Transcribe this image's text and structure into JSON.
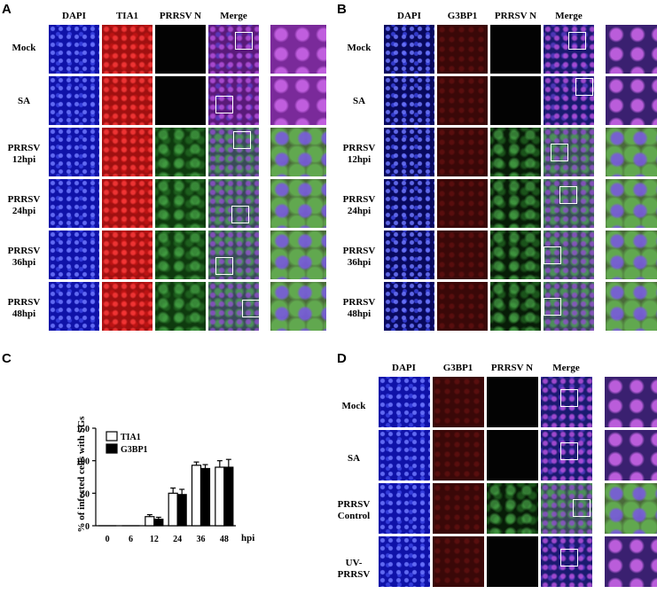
{
  "panels": {
    "A": {
      "label": "A",
      "columns": [
        "DAPI",
        "TIA1",
        "PRRSV N",
        "Merge"
      ],
      "rows": [
        "Mock",
        "SA",
        "PRRSV\n12hpi",
        "PRRSV\n24hpi",
        "PRRSV\n36hpi",
        "PRRSV\n48hpi"
      ]
    },
    "B": {
      "label": "B",
      "columns": [
        "DAPI",
        "G3BP1",
        "PRRSV N",
        "Merge"
      ],
      "rows": [
        "Mock",
        "SA",
        "PRRSV\n12hpi",
        "PRRSV\n24hpi",
        "PRRSV\n36hpi",
        "PRRSV\n48hpi"
      ]
    },
    "C": {
      "label": "C"
    },
    "D": {
      "label": "D",
      "columns": [
        "DAPI",
        "G3BP1",
        "PRRSV N",
        "Merge"
      ],
      "rows": [
        "Mock",
        "SA",
        "PRRSV\nControl",
        "UV-PRRSV"
      ]
    }
  },
  "chart_data": {
    "type": "bar",
    "ylabel": "% of infected cells with SGs",
    "xlabel": "hpi",
    "ylim": [
      0,
      150
    ],
    "yticks": [
      "0",
      "50",
      "100",
      "150"
    ],
    "categories": [
      "0",
      "6",
      "12",
      "24",
      "36",
      "48"
    ],
    "series": [
      {
        "name": "TIA1",
        "values": [
          0,
          0,
          14,
          50,
          93,
          90
        ],
        "errors": [
          0,
          0,
          3,
          8,
          5,
          10
        ],
        "color": "#ffffff"
      },
      {
        "name": "G3BP1",
        "values": [
          0,
          0,
          10,
          48,
          88,
          90
        ],
        "errors": [
          0,
          0,
          3,
          8,
          6,
          12
        ],
        "color": "#000000"
      }
    ],
    "legend": "top-left"
  }
}
